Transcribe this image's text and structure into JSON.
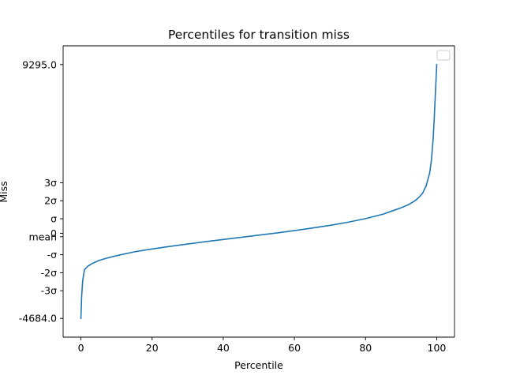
{
  "chart_data": {
    "type": "line",
    "title": "Percentiles for transition miss",
    "xlabel": "Percentile",
    "ylabel": "Miss",
    "xlim": [
      -5,
      105
    ],
    "ylim": [
      -5718,
      10329
    ],
    "grid": false,
    "legend": {
      "placement": "top-right",
      "entries": []
    },
    "x_ticks": [
      {
        "value": 0,
        "label": "0"
      },
      {
        "value": 20,
        "label": "20"
      },
      {
        "value": 40,
        "label": "40"
      },
      {
        "value": 60,
        "label": "60"
      },
      {
        "value": 80,
        "label": "80"
      },
      {
        "value": 100,
        "label": "100"
      }
    ],
    "y_ticks": [
      {
        "value": 9295,
        "label": "9295.0"
      },
      {
        "value": 2787,
        "label": "3σ"
      },
      {
        "value": 1796,
        "label": "2σ"
      },
      {
        "value": 804,
        "label": "σ"
      },
      {
        "value": 0,
        "label": "0"
      },
      {
        "value": -187,
        "label": "mean"
      },
      {
        "value": -1179,
        "label": "-σ"
      },
      {
        "value": -2170,
        "label": "-2σ"
      },
      {
        "value": -3162,
        "label": "-3σ"
      },
      {
        "value": -4684,
        "label": "-4684.0"
      }
    ],
    "series": [
      {
        "color": "#1f77b4",
        "x": [
          0,
          0.2,
          0.5,
          1,
          2,
          3,
          5,
          7,
          10,
          15,
          20,
          25,
          30,
          35,
          40,
          45,
          50,
          55,
          60,
          65,
          70,
          75,
          80,
          85,
          88,
          90,
          92,
          94,
          95,
          96,
          97,
          98,
          98.5,
          99,
          99.3,
          99.6,
          99.8,
          100
        ],
        "y": [
          -4684,
          -3500,
          -2600,
          -2000,
          -1800,
          -1680,
          -1500,
          -1380,
          -1230,
          -1020,
          -860,
          -720,
          -590,
          -460,
          -340,
          -220,
          -100,
          20,
          150,
          290,
          440,
          610,
          810,
          1060,
          1270,
          1410,
          1570,
          1810,
          1980,
          2200,
          2600,
          3300,
          4000,
          5200,
          6300,
          7600,
          8400,
          9295
        ]
      }
    ]
  }
}
